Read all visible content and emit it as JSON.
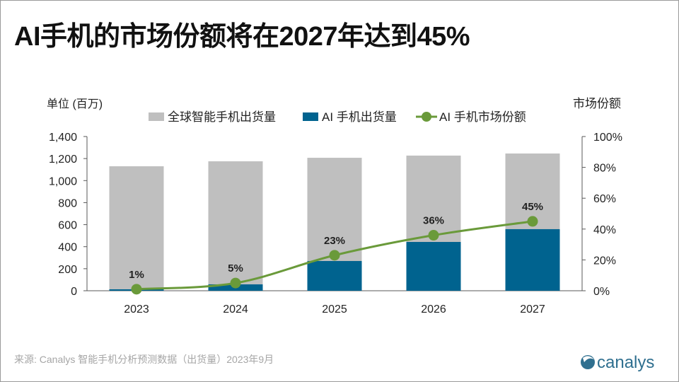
{
  "title": "AI手机的市场份额将在2027年达到45%",
  "source": "来源: Canalys 智能手机分析预测数据（出货量）2023年9月",
  "logo_text": "canalys",
  "chart_data": {
    "type": "bar",
    "stacking": "overlap",
    "categories": [
      "2023",
      "2024",
      "2025",
      "2026",
      "2027"
    ],
    "ylabel": "单位 (百万)",
    "y2label": "市场份额",
    "ylim": [
      0,
      1400
    ],
    "yticks": [
      "0",
      "200",
      "400",
      "600",
      "800",
      "1,000",
      "1,200",
      "1,400"
    ],
    "y2lim": [
      0,
      100
    ],
    "y2ticks": [
      "0%",
      "20%",
      "40%",
      "60%",
      "80%",
      "100%"
    ],
    "grid": false,
    "legend_position": "top",
    "series": [
      {
        "name": "全球智能手机出货量",
        "type": "bar",
        "color": "#bfbfbf",
        "values": [
          1130,
          1175,
          1207,
          1227,
          1246
        ]
      },
      {
        "name": "AI 手机出货量",
        "type": "bar",
        "color": "#00638f",
        "values": [
          13,
          58,
          270,
          443,
          559
        ]
      },
      {
        "name": "AI 手机市场份额",
        "type": "line",
        "axis": "right",
        "color": "#6a9a3a",
        "values": [
          1,
          5,
          23,
          36,
          45
        ],
        "labels": [
          "1%",
          "5%",
          "23%",
          "36%",
          "45%"
        ]
      }
    ]
  }
}
